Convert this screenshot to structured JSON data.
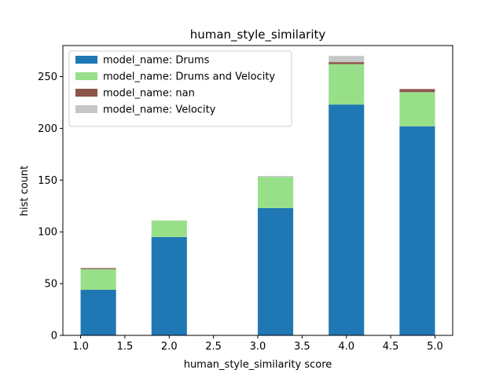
{
  "chart_data": {
    "type": "bar",
    "stacked": true,
    "title": "human_style_similarity",
    "xlabel": "human_style_similarity score",
    "ylabel": "hist count",
    "xlim": [
      0.8,
      5.2
    ],
    "ylim": [
      0,
      280
    ],
    "xticks": [
      "1.0",
      "1.5",
      "2.0",
      "2.5",
      "3.0",
      "3.5",
      "4.0",
      "4.5",
      "5.0"
    ],
    "yticks": [
      "0",
      "50",
      "100",
      "150",
      "200",
      "250"
    ],
    "bins": [
      {
        "left": 1.0,
        "right": 1.4
      },
      {
        "left": 1.8,
        "right": 2.2
      },
      {
        "left": 3.0,
        "right": 3.4
      },
      {
        "left": 3.8,
        "right": 4.2
      },
      {
        "left": 4.6,
        "right": 5.0
      }
    ],
    "series": [
      {
        "name": "model_name: Drums",
        "color": "#1f77b4",
        "values": [
          44,
          95,
          123,
          223,
          202
        ]
      },
      {
        "name": "model_name: Drums and Velocity",
        "color": "#98df8a",
        "values": [
          20,
          16,
          30,
          39,
          33
        ]
      },
      {
        "name": "model_name: nan",
        "color": "#8c564b",
        "values": [
          1,
          0,
          0,
          2,
          3
        ]
      },
      {
        "name": "model_name: Velocity",
        "color": "#c7c7c7",
        "values": [
          0,
          0,
          1,
          6,
          0
        ]
      }
    ],
    "legend": "top-left",
    "grid": false
  }
}
